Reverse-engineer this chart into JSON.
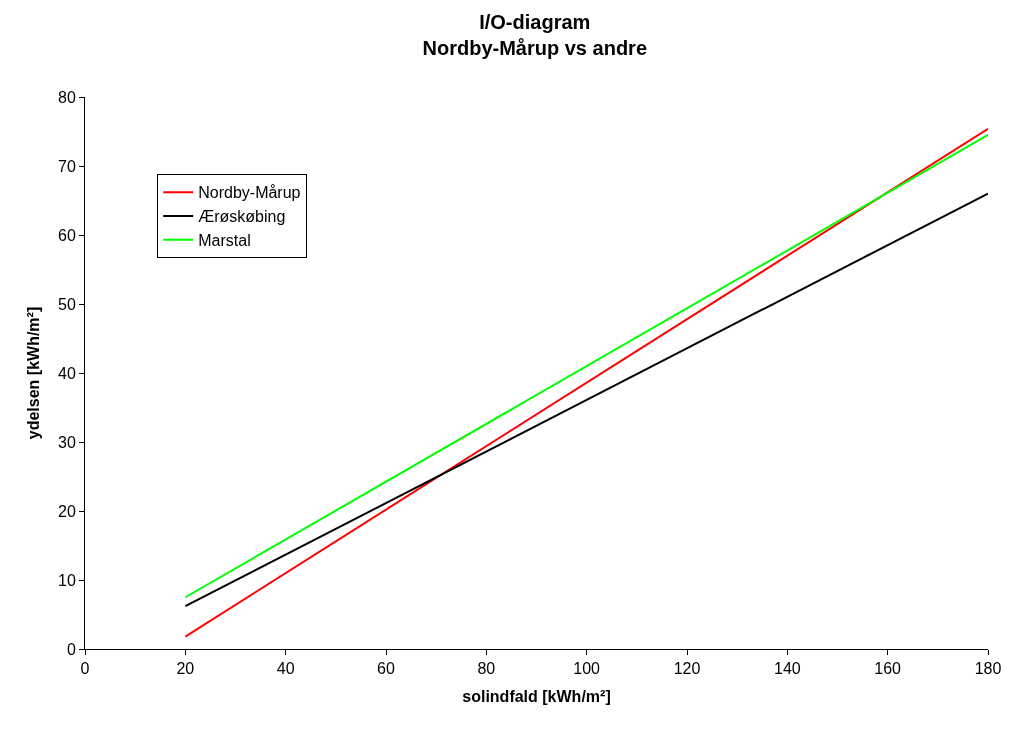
{
  "chart_data": {
    "type": "line",
    "title": "I/O-diagram\nNordby-Mårup vs andre",
    "xlabel": "solindfald [kWh/m²]",
    "ylabel": "ydelsen [kWh/m²]",
    "x": [
      20,
      180
    ],
    "series": [
      {
        "name": "Nordby-Mårup",
        "color": "#ff0000",
        "values": [
          1.8,
          75.4
        ]
      },
      {
        "name": "Ærøskøbing",
        "color": "#000000",
        "values": [
          6.2,
          66
        ]
      },
      {
        "name": "Marstal",
        "color": "#00ff00",
        "values": [
          7.5,
          74.5
        ]
      }
    ],
    "xlim": [
      0,
      180
    ],
    "xticks": [
      0,
      20,
      40,
      60,
      80,
      100,
      120,
      140,
      160,
      180
    ],
    "ylim": [
      0,
      80
    ],
    "yticks": [
      0,
      10,
      20,
      30,
      40,
      50,
      60,
      70,
      80
    ],
    "grid": false,
    "legend": "top left",
    "marker": "none",
    "line_style": "solid"
  }
}
